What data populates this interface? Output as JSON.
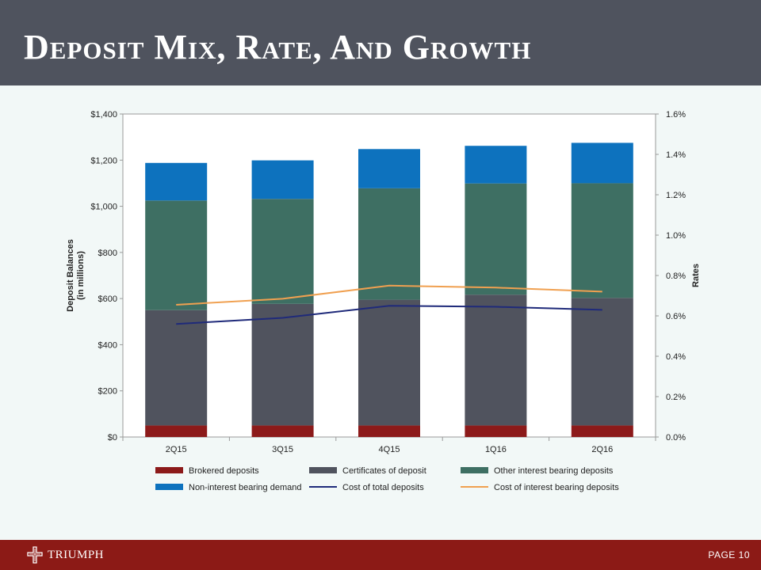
{
  "slide": {
    "title": "Deposit Mix, Rate, And Growth",
    "brand": "TRIUMPH",
    "page_label": "PAGE 10"
  },
  "colors": {
    "header_bg": "#4f535e",
    "footer_bg": "#8c1a16",
    "background": "#f2f8f7",
    "brokered": "#8c1a1a",
    "certificates": "#50535e",
    "other_interest": "#3e6f63",
    "non_interest": "#0d72be",
    "cost_total": "#1f2a7a",
    "cost_interest": "#f0a050"
  },
  "chart_data": {
    "type": "bar",
    "stacked": true,
    "categories": [
      "2Q15",
      "3Q15",
      "4Q15",
      "1Q16",
      "2Q16"
    ],
    "series": [
      {
        "name": "Brokered deposits",
        "color": "#8c1a1a",
        "values": [
          50,
          50,
          50,
          50,
          50
        ]
      },
      {
        "name": "Certificates of deposit",
        "color": "#50535e",
        "values": [
          500,
          527,
          545,
          567,
          553
        ]
      },
      {
        "name": "Other interest bearing deposits",
        "color": "#3e6f63",
        "values": [
          475,
          455,
          483,
          482,
          497
        ]
      },
      {
        "name": "Non-interest bearing demand",
        "color": "#0d72be",
        "values": [
          163,
          167,
          170,
          163,
          175
        ]
      }
    ],
    "line_series": [
      {
        "name": "Cost of total deposits",
        "color": "#1f2a7a",
        "axis": "right",
        "values": [
          0.56,
          0.59,
          0.65,
          0.645,
          0.63
        ]
      },
      {
        "name": "Cost of interest bearing deposits",
        "color": "#f0a050",
        "axis": "right",
        "values": [
          0.655,
          0.685,
          0.75,
          0.74,
          0.72
        ]
      }
    ],
    "ylabel": "Deposit Balances",
    "ylabel_sub": "(in millions)",
    "ylim": [
      0,
      1400
    ],
    "y_ticks": [
      "$0",
      "$200",
      "$400",
      "$600",
      "$800",
      "$1,000",
      "$1,200",
      "$1,400"
    ],
    "y2label": "Rates",
    "y2lim": [
      0,
      1.6
    ],
    "y2_ticks": [
      "0.0%",
      "0.2%",
      "0.4%",
      "0.6%",
      "0.8%",
      "1.0%",
      "1.2%",
      "1.4%",
      "1.6%"
    ],
    "legend": [
      {
        "label": "Brokered deposits",
        "color": "#8c1a1a",
        "kind": "box"
      },
      {
        "label": "Certificates of deposit",
        "color": "#50535e",
        "kind": "box"
      },
      {
        "label": "Other interest bearing deposits",
        "color": "#3e6f63",
        "kind": "box"
      },
      {
        "label": "Non-interest bearing demand",
        "color": "#0d72be",
        "kind": "box"
      },
      {
        "label": "Cost of total deposits",
        "color": "#1f2a7a",
        "kind": "line"
      },
      {
        "label": "Cost of interest bearing deposits",
        "color": "#f0a050",
        "kind": "line"
      }
    ],
    "legend_position": "bottom",
    "grid": false
  }
}
